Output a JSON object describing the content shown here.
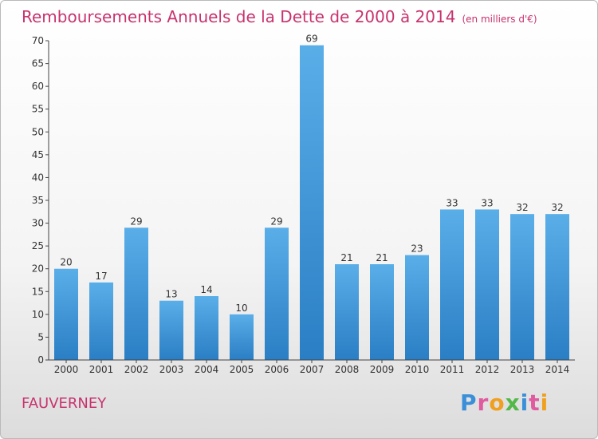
{
  "header": {
    "title": "Remboursements Annuels de la Dette de 2000 à 2014",
    "unit": "(en milliers d'€)"
  },
  "footer": {
    "place": "FAUVERNEY",
    "logo": "Proxiti"
  },
  "colors": {
    "accent": "#c8336e",
    "bar_top": "#5aaee8",
    "bar_bottom": "#2a7ec4"
  },
  "chart_data": {
    "type": "bar",
    "title": "Remboursements Annuels de la Dette de 2000 à 2014",
    "ylabel": "",
    "xlabel": "",
    "categories": [
      "2000",
      "2001",
      "2002",
      "2003",
      "2004",
      "2005",
      "2006",
      "2007",
      "2008",
      "2009",
      "2010",
      "2011",
      "2012",
      "2013",
      "2014"
    ],
    "values": [
      20,
      17,
      29,
      13,
      14,
      10,
      29,
      69,
      21,
      21,
      23,
      33,
      33,
      32,
      32
    ],
    "ylim": [
      0,
      70
    ],
    "yticks": [
      0,
      5,
      10,
      15,
      20,
      25,
      30,
      35,
      40,
      45,
      50,
      55,
      60,
      65,
      70
    ],
    "grid": false,
    "data_labels": true
  }
}
